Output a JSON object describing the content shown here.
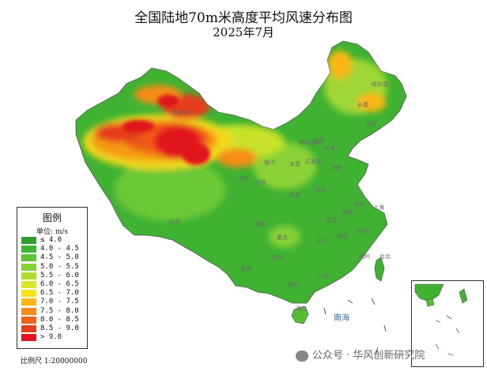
{
  "title": "全国陆地70m米高度平均风速分布图",
  "subtitle": "2025年7月",
  "legend": {
    "title": "图例",
    "unit": "单位: m/s",
    "items": [
      {
        "label": "≤ 4.0",
        "color": "#2ea02e"
      },
      {
        "label": "4.0 - 4.5",
        "color": "#3db533"
      },
      {
        "label": "4.5 - 5.0",
        "color": "#5cc435"
      },
      {
        "label": "5.0 - 5.5",
        "color": "#86d134"
      },
      {
        "label": "5.5 - 6.0",
        "color": "#b0dc2e"
      },
      {
        "label": "6.0 - 6.5",
        "color": "#dbe82a"
      },
      {
        "label": "6.5 - 7.0",
        "color": "#f5e11c"
      },
      {
        "label": "7.0 - 7.5",
        "color": "#f8b717"
      },
      {
        "label": "7.5 - 8.0",
        "color": "#f58c16"
      },
      {
        "label": "8.0 - 8.5",
        "color": "#ee6418"
      },
      {
        "label": "8.5 - 9.0",
        "color": "#e53d1a"
      },
      {
        "label": "> 9.0",
        "color": "#e0141e"
      }
    ]
  },
  "scale": "比例尺 1:20000000",
  "watermark": "公众号 · 华风创新研究院",
  "sea_label": "南海",
  "cities": [
    "哈尔滨",
    "长春",
    "沈阳",
    "北京",
    "天津",
    "石家庄",
    "太原",
    "济南",
    "呼和浩特",
    "银川",
    "兰州",
    "西宁",
    "郑州",
    "西安",
    "南京",
    "上海",
    "合肥",
    "武汉",
    "杭州",
    "成都",
    "重庆",
    "长沙",
    "南昌",
    "福州",
    "贵阳",
    "昆明",
    "南宁",
    "广州",
    "台北",
    "海口",
    "乌鲁木齐",
    "拉萨"
  ]
}
